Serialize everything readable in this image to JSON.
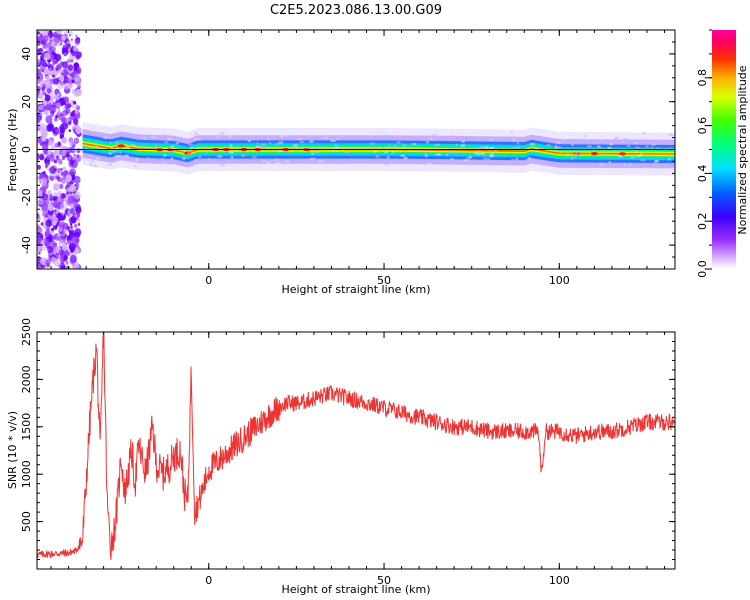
{
  "title": "C2E5.2023.086.13.00.G09",
  "colors": {
    "snr_line": "#ee3333",
    "frame": "#000000",
    "dc_line": "#000000"
  },
  "chart_data": [
    {
      "type": "heatmap",
      "name": "spectrogram",
      "xlabel": "Height of straight line (km)",
      "ylabel": "Frequency (Hz)",
      "xlim": [
        -49,
        133
      ],
      "ylim": [
        -50,
        50
      ],
      "xticks": [
        0,
        50,
        100
      ],
      "yticks": [
        -40,
        -20,
        0,
        20,
        40
      ],
      "grid": false,
      "colorbar": {
        "label": "Normalized spectral amplitude",
        "range": [
          0,
          1
        ],
        "ticks": [
          "0.0",
          "0.2",
          "0.4",
          "0.6",
          "0.8"
        ],
        "colormap": "rainbow (white → purple → blue → cyan → green → yellow → orange → red → magenta)"
      },
      "signal_track": [
        {
          "x": -36,
          "y": 2.5
        },
        {
          "x": -32,
          "y": 1.5
        },
        {
          "x": -28,
          "y": 0.5
        },
        {
          "x": -25,
          "y": 1.5
        },
        {
          "x": -20,
          "y": 0.3
        },
        {
          "x": -10,
          "y": -0.2
        },
        {
          "x": -6,
          "y": -1.5
        },
        {
          "x": -3,
          "y": 0.0
        },
        {
          "x": 10,
          "y": 0.0
        },
        {
          "x": 30,
          "y": 0.0
        },
        {
          "x": 50,
          "y": 0.0
        },
        {
          "x": 70,
          "y": -0.3
        },
        {
          "x": 90,
          "y": -0.7
        },
        {
          "x": 92,
          "y": 0.2
        },
        {
          "x": 100,
          "y": -1.6
        },
        {
          "x": 133,
          "y": -1.9
        }
      ],
      "dc_line_y": 0,
      "noisy_region_x": [
        -49,
        -37
      ]
    },
    {
      "type": "line",
      "name": "snr",
      "xlabel": "Height of straight line (km)",
      "ylabel": "SNR (10 * v/v)",
      "xlim": [
        -49,
        133
      ],
      "ylim": [
        0,
        2500
      ],
      "xticks": [
        0,
        50,
        100
      ],
      "yticks": [
        500,
        1000,
        1500,
        2000,
        2500
      ],
      "grid": false,
      "series": [
        {
          "color": "#ee3333",
          "points": [
            [
              -49,
              150
            ],
            [
              -45,
              160
            ],
            [
              -40,
              170
            ],
            [
              -38,
              190
            ],
            [
              -36,
              300
            ],
            [
              -35,
              900
            ],
            [
              -34,
              1500
            ],
            [
              -33,
              2000
            ],
            [
              -32,
              2350
            ],
            [
              -31,
              1200
            ],
            [
              -30,
              2550
            ],
            [
              -29,
              700
            ],
            [
              -28,
              250
            ],
            [
              -27,
              400
            ],
            [
              -26,
              700
            ],
            [
              -25,
              1200
            ],
            [
              -24,
              800
            ],
            [
              -23,
              1000
            ],
            [
              -22,
              1250
            ],
            [
              -21,
              900
            ],
            [
              -20,
              1300
            ],
            [
              -18,
              1000
            ],
            [
              -16,
              1500
            ],
            [
              -15,
              1100
            ],
            [
              -13,
              1000
            ],
            [
              -11,
              1100
            ],
            [
              -10,
              1200
            ],
            [
              -8,
              1250
            ],
            [
              -7,
              800
            ],
            [
              -6,
              700
            ],
            [
              -5,
              2100
            ],
            [
              -4,
              600
            ],
            [
              -2,
              800
            ],
            [
              0,
              1050
            ],
            [
              3,
              1150
            ],
            [
              6,
              1250
            ],
            [
              9,
              1350
            ],
            [
              12,
              1450
            ],
            [
              15,
              1550
            ],
            [
              18,
              1650
            ],
            [
              22,
              1750
            ],
            [
              26,
              1750
            ],
            [
              30,
              1800
            ],
            [
              35,
              1850
            ],
            [
              40,
              1800
            ],
            [
              45,
              1750
            ],
            [
              50,
              1700
            ],
            [
              55,
              1650
            ],
            [
              60,
              1600
            ],
            [
              65,
              1550
            ],
            [
              70,
              1500
            ],
            [
              75,
              1500
            ],
            [
              80,
              1450
            ],
            [
              85,
              1450
            ],
            [
              90,
              1450
            ],
            [
              94,
              1450
            ],
            [
              95,
              1000
            ],
            [
              96,
              1450
            ],
            [
              100,
              1450
            ],
            [
              105,
              1400
            ],
            [
              110,
              1450
            ],
            [
              115,
              1450
            ],
            [
              120,
              1500
            ],
            [
              125,
              1550
            ],
            [
              130,
              1550
            ],
            [
              133,
              1550
            ]
          ]
        }
      ]
    }
  ]
}
